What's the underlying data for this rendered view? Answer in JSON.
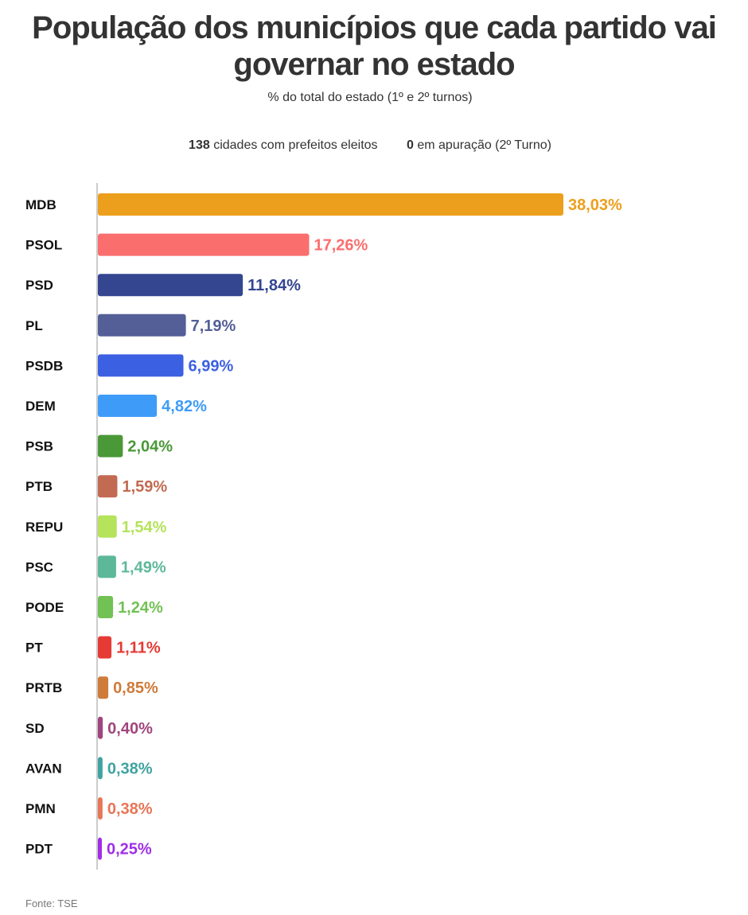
{
  "title": "População dos municípios que cada partido vai governar no estado",
  "subtitle": "% do total do estado (1º e 2º turnos)",
  "stats": {
    "elected_count": "138",
    "elected_text": "cidades com prefeitos eleitos",
    "pending_count": "0",
    "pending_text": "em apuração (2º Turno)"
  },
  "source": "Fonte: TSE",
  "chart_data": {
    "type": "bar",
    "orientation": "horizontal",
    "categories": [
      "MDB",
      "PSOL",
      "PSD",
      "PL",
      "PSDB",
      "DEM",
      "PSB",
      "PTB",
      "REPU",
      "PSC",
      "PODE",
      "PT",
      "PRTB",
      "SD",
      "AVAN",
      "PMN",
      "PDT"
    ],
    "values": [
      38.03,
      17.26,
      11.84,
      7.19,
      6.99,
      4.82,
      2.04,
      1.59,
      1.54,
      1.49,
      1.24,
      1.11,
      0.85,
      0.4,
      0.38,
      0.38,
      0.25
    ],
    "labels": [
      "38,03%",
      "17,26%",
      "11,84%",
      "7,19%",
      "6,99%",
      "4,82%",
      "2,04%",
      "1,59%",
      "1,54%",
      "1,49%",
      "1,24%",
      "1,11%",
      "0,85%",
      "0,40%",
      "0,38%",
      "0,38%",
      "0,25%"
    ],
    "colors": [
      "#ec9f1c",
      "#fb6e6e",
      "#344690",
      "#545f98",
      "#3c60e2",
      "#3e9cf8",
      "#4b9838",
      "#c26a52",
      "#b5e35b",
      "#5db89a",
      "#72c155",
      "#e63a34",
      "#cf7b3a",
      "#a0457d",
      "#3fa3a0",
      "#e87556",
      "#a02ee6"
    ],
    "xlim": [
      0,
      38.03
    ],
    "grid": false,
    "legend": "none"
  }
}
